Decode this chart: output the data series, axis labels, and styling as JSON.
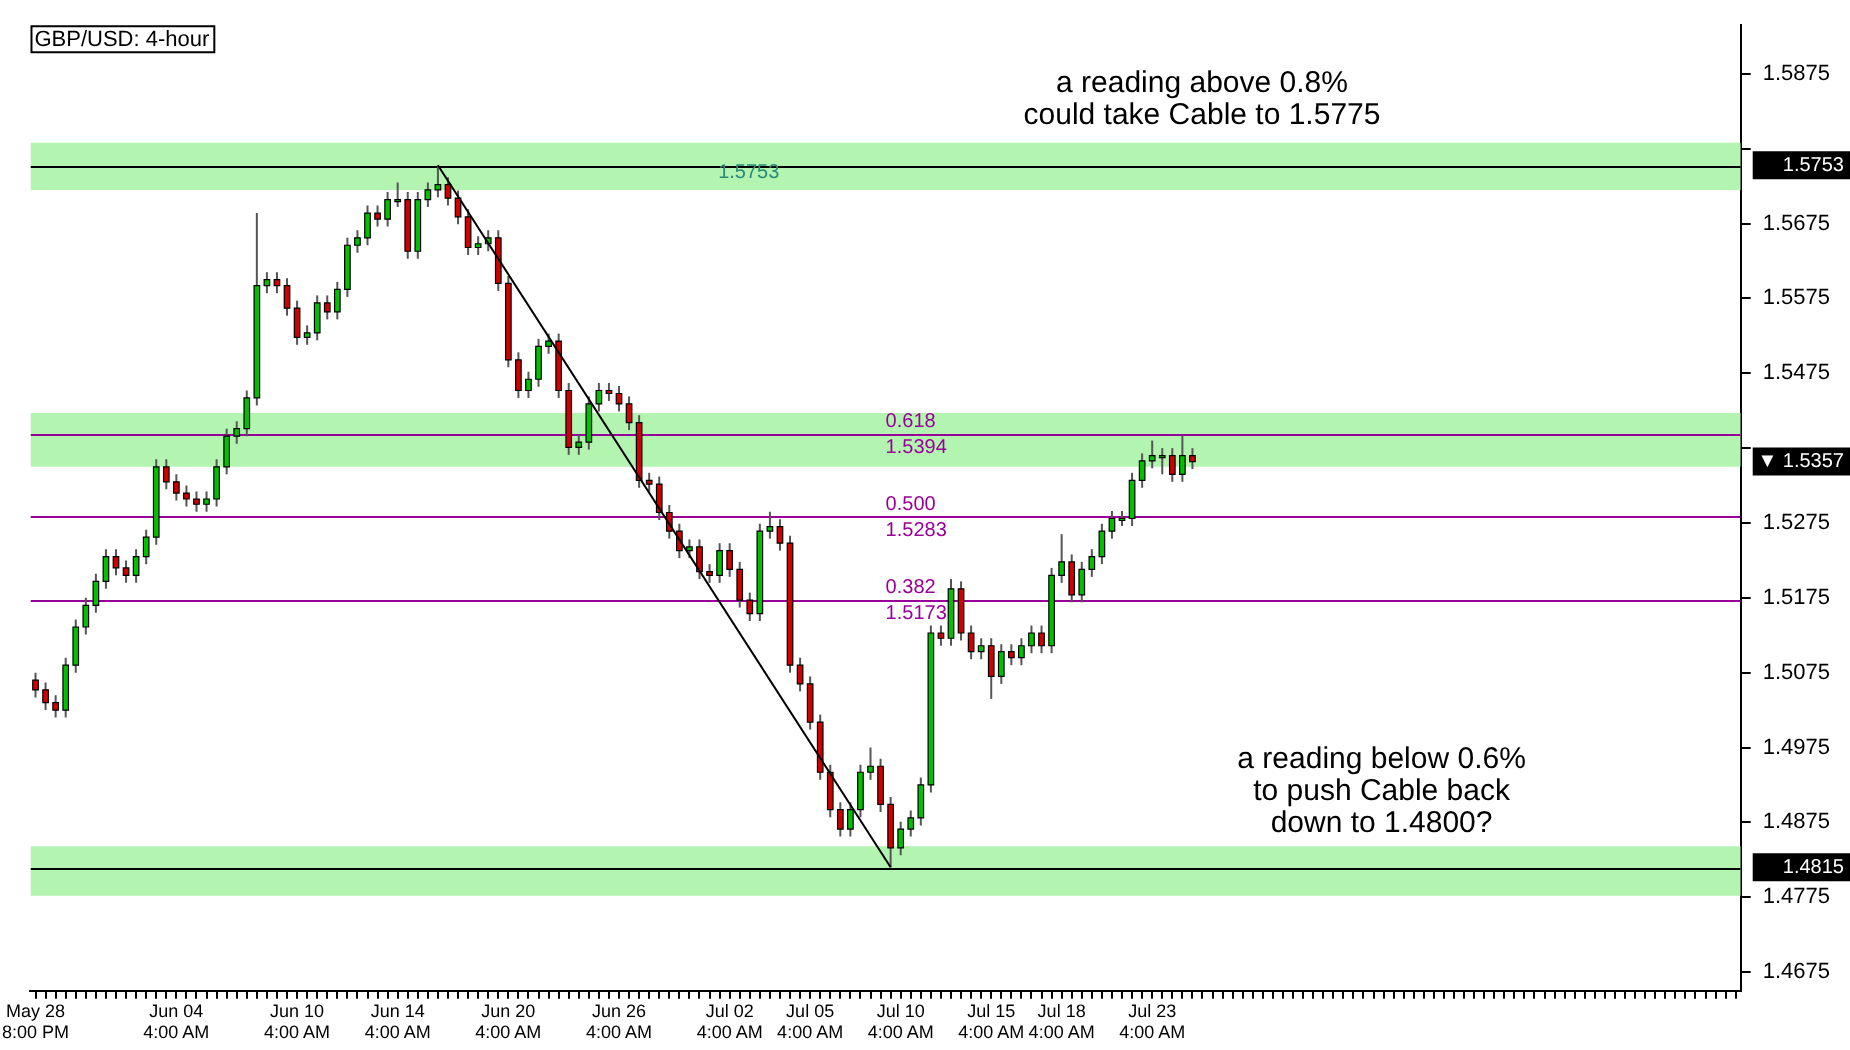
{
  "chart_data": {
    "type": "candlestick",
    "title": "GBP/USD: 4-hour",
    "categories": [
      "May 28 8:00 PM",
      null,
      null,
      null,
      null,
      null,
      null,
      null,
      null,
      null,
      null,
      null,
      null,
      null,
      "Jun 04 4:00 AM",
      null,
      null,
      null,
      null,
      null,
      null,
      null,
      null,
      null,
      null,
      null,
      "Jun 10 4:00 AM",
      null,
      null,
      null,
      null,
      null,
      null,
      null,
      null,
      null,
      "Jun 14 4:00 AM",
      null,
      null,
      null,
      null,
      null,
      null,
      null,
      null,
      null,
      null,
      "Jun 20 4:00 AM",
      null,
      null,
      null,
      null,
      null,
      null,
      null,
      null,
      null,
      null,
      "Jun 26 4:00 AM",
      null,
      null,
      null,
      null,
      null,
      null,
      null,
      null,
      null,
      null,
      "Jul 02 4:00 AM",
      null,
      null,
      null,
      null,
      null,
      null,
      null,
      "Jul 05 4:00 AM",
      null,
      null,
      null,
      null,
      null,
      null,
      null,
      null,
      "Jul 10 4:00 AM",
      null,
      null,
      null,
      null,
      null,
      null,
      null,
      null,
      "Jul 15 4:00 AM",
      null,
      null,
      null,
      null,
      null,
      null,
      "Jul 18 4:00 AM",
      null,
      null,
      null,
      null,
      null,
      null,
      null,
      null,
      "Jul 23 4:00 AM",
      null,
      null,
      null,
      null,
      null,
      null,
      null,
      null,
      null,
      null,
      null,
      null,
      null,
      null,
      null,
      null,
      null,
      null,
      null,
      null,
      null,
      null,
      null,
      null,
      null,
      null,
      null,
      null,
      null,
      null,
      null,
      null,
      null,
      null,
      null,
      null,
      null,
      null,
      null,
      null,
      null,
      null,
      null,
      null,
      null,
      null,
      null,
      null,
      null,
      null,
      null,
      null,
      null,
      null,
      null,
      null,
      null,
      null
    ],
    "ohlc": [
      [
        1.5065,
        1.5075,
        1.5042,
        1.5052
      ],
      [
        1.5052,
        1.5062,
        1.5025,
        1.5035
      ],
      [
        1.5035,
        1.5045,
        1.5015,
        1.5025
      ],
      [
        1.5025,
        1.5095,
        1.5015,
        1.5085
      ],
      [
        1.5085,
        1.5146,
        1.5075,
        1.5136
      ],
      [
        1.5136,
        1.5175,
        1.5126,
        1.5165
      ],
      [
        1.5165,
        1.5207,
        1.5155,
        1.5197
      ],
      [
        1.5197,
        1.524,
        1.5187,
        1.523
      ],
      [
        1.523,
        1.524,
        1.5205,
        1.5215
      ],
      [
        1.5215,
        1.5225,
        1.5195,
        1.5205
      ],
      [
        1.5205,
        1.524,
        1.5195,
        1.523
      ],
      [
        1.523,
        1.5266,
        1.522,
        1.5256
      ],
      [
        1.5256,
        1.536,
        1.5246,
        1.535
      ],
      [
        1.535,
        1.536,
        1.532,
        1.533
      ],
      [
        1.533,
        1.534,
        1.5305,
        1.5315
      ],
      [
        1.5315,
        1.5325,
        1.5297,
        1.5307
      ],
      [
        1.5307,
        1.5317,
        1.529,
        1.53
      ],
      [
        1.53,
        1.5317,
        1.529,
        1.5307
      ],
      [
        1.5307,
        1.536,
        1.5297,
        1.535
      ],
      [
        1.535,
        1.5401,
        1.534,
        1.5391
      ],
      [
        1.5391,
        1.5411,
        1.5381,
        1.5401
      ],
      [
        1.5401,
        1.5452,
        1.5391,
        1.5442
      ],
      [
        1.5442,
        1.5689,
        1.5432,
        1.5592
      ],
      [
        1.5592,
        1.561,
        1.5582,
        1.56
      ],
      [
        1.56,
        1.561,
        1.5582,
        1.5592
      ],
      [
        1.5592,
        1.5602,
        1.5552,
        1.5562
      ],
      [
        1.5562,
        1.5572,
        1.5513,
        1.5523
      ],
      [
        1.5523,
        1.5539,
        1.5513,
        1.5529
      ],
      [
        1.5529,
        1.5579,
        1.5519,
        1.5569
      ],
      [
        1.5569,
        1.5579,
        1.5547,
        1.5557
      ],
      [
        1.5557,
        1.5597,
        1.5547,
        1.5587
      ],
      [
        1.5587,
        1.5656,
        1.5577,
        1.5646
      ],
      [
        1.5646,
        1.5666,
        1.5636,
        1.5656
      ],
      [
        1.5656,
        1.5699,
        1.5646,
        1.5689
      ],
      [
        1.5689,
        1.5699,
        1.5671,
        1.5681
      ],
      [
        1.5681,
        1.5717,
        1.5671,
        1.5707
      ],
      [
        1.5707,
        1.573,
        1.5697,
        1.5707
      ],
      [
        1.5707,
        1.5717,
        1.5628,
        1.5638
      ],
      [
        1.5638,
        1.5717,
        1.5628,
        1.5707
      ],
      [
        1.5707,
        1.573,
        1.5697,
        1.572
      ],
      [
        1.572,
        1.5753,
        1.571,
        1.5727
      ],
      [
        1.5727,
        1.5737,
        1.5699,
        1.5709
      ],
      [
        1.5709,
        1.5719,
        1.5674,
        1.5684
      ],
      [
        1.5684,
        1.5694,
        1.5633,
        1.5643
      ],
      [
        1.5643,
        1.5658,
        1.5633,
        1.5648
      ],
      [
        1.5648,
        1.5666,
        1.5638,
        1.5656
      ],
      [
        1.5656,
        1.5666,
        1.5585,
        1.5595
      ],
      [
        1.5595,
        1.5605,
        1.5483,
        1.5493
      ],
      [
        1.5493,
        1.5503,
        1.5442,
        1.5452
      ],
      [
        1.5452,
        1.5477,
        1.5442,
        1.5467
      ],
      [
        1.5467,
        1.5521,
        1.5457,
        1.5511
      ],
      [
        1.5511,
        1.5528,
        1.5501,
        1.5518
      ],
      [
        1.5518,
        1.5528,
        1.5442,
        1.5452
      ],
      [
        1.5452,
        1.5462,
        1.5366,
        1.5376
      ],
      [
        1.5376,
        1.5393,
        1.5366,
        1.5383
      ],
      [
        1.5383,
        1.5444,
        1.5373,
        1.5434
      ],
      [
        1.5434,
        1.5462,
        1.5424,
        1.5452
      ],
      [
        1.5452,
        1.5462,
        1.5438,
        1.5448
      ],
      [
        1.5448,
        1.5458,
        1.5424,
        1.5434
      ],
      [
        1.5434,
        1.5444,
        1.5399,
        1.5409
      ],
      [
        1.5409,
        1.5419,
        1.5322,
        1.5332
      ],
      [
        1.5332,
        1.5342,
        1.5317,
        1.5327
      ],
      [
        1.5327,
        1.5337,
        1.5279,
        1.5289
      ],
      [
        1.5289,
        1.5299,
        1.5254,
        1.5264
      ],
      [
        1.5264,
        1.5274,
        1.5228,
        1.5238
      ],
      [
        1.5238,
        1.5253,
        1.5228,
        1.5243
      ],
      [
        1.5243,
        1.5253,
        1.52,
        1.521
      ],
      [
        1.521,
        1.522,
        1.5195,
        1.5205
      ],
      [
        1.5205,
        1.5248,
        1.5195,
        1.5238
      ],
      [
        1.5238,
        1.5248,
        1.5203,
        1.5213
      ],
      [
        1.5213,
        1.5223,
        1.5162,
        1.5172
      ],
      [
        1.5172,
        1.5182,
        1.5144,
        1.5154
      ],
      [
        1.5154,
        1.5274,
        1.5144,
        1.5264
      ],
      [
        1.5264,
        1.529,
        1.5254,
        1.527
      ],
      [
        1.527,
        1.528,
        1.5238,
        1.5248
      ],
      [
        1.5248,
        1.5258,
        1.5075,
        1.5085
      ],
      [
        1.5085,
        1.5095,
        1.505,
        1.506
      ],
      [
        1.506,
        1.507,
        1.4999,
        1.5009
      ],
      [
        1.5009,
        1.5019,
        1.4932,
        1.4942
      ],
      [
        1.4942,
        1.4952,
        1.4882,
        1.4892
      ],
      [
        1.4892,
        1.4902,
        1.4856,
        1.4866
      ],
      [
        1.4866,
        1.4902,
        1.4856,
        1.4892
      ],
      [
        1.4892,
        1.4952,
        1.4882,
        1.4942
      ],
      [
        1.4942,
        1.4975,
        1.4932,
        1.495
      ],
      [
        1.495,
        1.496,
        1.4889,
        1.4899
      ],
      [
        1.4899,
        1.4909,
        1.4815,
        1.4841
      ],
      [
        1.4841,
        1.4876,
        1.4831,
        1.4866
      ],
      [
        1.4866,
        1.4891,
        1.4856,
        1.4881
      ],
      [
        1.4881,
        1.4935,
        1.4871,
        1.4925
      ],
      [
        1.4925,
        1.5138,
        1.4915,
        1.5128
      ],
      [
        1.5128,
        1.5138,
        1.5111,
        1.5121
      ],
      [
        1.5121,
        1.52,
        1.5111,
        1.5187
      ],
      [
        1.5187,
        1.5197,
        1.5118,
        1.5128
      ],
      [
        1.5128,
        1.5138,
        1.5093,
        1.5103
      ],
      [
        1.5103,
        1.5121,
        1.5093,
        1.5111
      ],
      [
        1.5111,
        1.5121,
        1.504,
        1.507
      ],
      [
        1.507,
        1.5113,
        1.506,
        1.5103
      ],
      [
        1.5103,
        1.5113,
        1.5085,
        1.5095
      ],
      [
        1.5095,
        1.5121,
        1.5085,
        1.5111
      ],
      [
        1.5111,
        1.5138,
        1.5101,
        1.5128
      ],
      [
        1.5128,
        1.5138,
        1.5101,
        1.5111
      ],
      [
        1.5111,
        1.5215,
        1.5101,
        1.5205
      ],
      [
        1.5205,
        1.526,
        1.5195,
        1.5223
      ],
      [
        1.5223,
        1.5233,
        1.5169,
        1.5179
      ],
      [
        1.5179,
        1.5223,
        1.5169,
        1.5213
      ],
      [
        1.5213,
        1.524,
        1.5203,
        1.523
      ],
      [
        1.523,
        1.5274,
        1.522,
        1.5264
      ],
      [
        1.5264,
        1.5291,
        1.5254,
        1.5281
      ],
      [
        1.5281,
        1.5291,
        1.5271,
        1.5281
      ],
      [
        1.5281,
        1.5342,
        1.5271,
        1.5332
      ],
      [
        1.5332,
        1.5368,
        1.5322,
        1.5358
      ],
      [
        1.5358,
        1.5385,
        1.5348,
        1.5365
      ],
      [
        1.5365,
        1.5375,
        1.534,
        1.5365
      ],
      [
        1.5365,
        1.5375,
        1.533,
        1.534
      ],
      [
        1.534,
        1.5392,
        1.533,
        1.5365
      ],
      [
        1.5365,
        1.5375,
        1.5347,
        1.5357
      ],
      null,
      null,
      null,
      null,
      null,
      null,
      null,
      null,
      null,
      null,
      null,
      null,
      null,
      null,
      null,
      null,
      null,
      null,
      null,
      null,
      null,
      null,
      null,
      null,
      null,
      null,
      null,
      null,
      null,
      null,
      null,
      null,
      null,
      null,
      null,
      null,
      null,
      null,
      null,
      null,
      null,
      null,
      null,
      null,
      null,
      null,
      null,
      null,
      null,
      null,
      null,
      null,
      null,
      null
    ],
    "series": [
      {
        "type": "line",
        "color": "#000000",
        "values": [
          null,
          null,
          null,
          null,
          null,
          null,
          null,
          null,
          null,
          null,
          null,
          null,
          null,
          null,
          null,
          null,
          null,
          null,
          null,
          null,
          null,
          null,
          null,
          null,
          null,
          null,
          null,
          null,
          null,
          null,
          null,
          null,
          null,
          null,
          null,
          null,
          null,
          null,
          null,
          null,
          1.5753,
          null,
          null,
          null,
          null,
          null,
          null,
          null,
          null,
          null,
          null,
          null,
          null,
          null,
          null,
          null,
          null,
          null,
          null,
          null,
          null,
          null,
          null,
          null,
          null,
          null,
          null,
          null,
          null,
          null,
          null,
          null,
          null,
          null,
          null,
          null,
          null,
          null,
          null,
          null,
          null,
          null,
          null,
          null,
          null,
          1.4815,
          null,
          null,
          null,
          null,
          null,
          null,
          null,
          null,
          null,
          null,
          null,
          null,
          null,
          null,
          null,
          null,
          null,
          null,
          null,
          null,
          null,
          null,
          null,
          null,
          null,
          null,
          null,
          null,
          null,
          null,
          null,
          null,
          null,
          null,
          null,
          null,
          null,
          null,
          null,
          null,
          null,
          null,
          null,
          null,
          null,
          null,
          null,
          null,
          null,
          null,
          null,
          null,
          null,
          null,
          null,
          null,
          null,
          null,
          null,
          null,
          null,
          null,
          null,
          null,
          null,
          null,
          null,
          null,
          null,
          null,
          null,
          null,
          null,
          null,
          null,
          null,
          null,
          null,
          null,
          null,
          null,
          null,
          null,
          null
        ]
      }
    ],
    "ylim": [
      1.465,
      1.594
    ],
    "yticks": [
      1.4675,
      1.4775,
      1.4875,
      1.4975,
      1.5075,
      1.5175,
      1.5275,
      {
        "value": 1.5375,
        "label": null
      },
      1.5475,
      1.5575,
      1.5675,
      {
        "value": 1.5775,
        "label": null
      },
      1.5875
    ],
    "ref_lines": [
      {
        "axis": "y",
        "value": 1.5753,
        "label": "1.5753",
        "color": "#000000"
      },
      {
        "axis": "y",
        "value": 1.4815,
        "label": "1.4815",
        "color": "#000000"
      },
      {
        "axis": "y",
        "value": 1.5394,
        "label": "1.5394",
        "color": "#990099"
      },
      {
        "axis": "y",
        "value": 1.5283,
        "label": "1.5283",
        "color": "#990099"
      },
      {
        "axis": "y",
        "value": 1.5173,
        "label": "1.5173",
        "color": "#990099"
      }
    ],
    "bands": [
      {
        "axis": "y",
        "from": 1.572,
        "to": 1.5783,
        "label": "1.5753",
        "color": "#b3f5b0"
      },
      {
        "axis": "y",
        "from": 1.535,
        "to": 1.5422,
        "color": "#b3f5b0"
      },
      {
        "axis": "y",
        "from": 1.4777,
        "to": 1.4843,
        "color": "#b3f5b0"
      }
    ],
    "annotations": [
      "a reading above 0.8%\ncould take Cable to 1.5775",
      "a reading below 0.6%\nto push Cable back\ndown to 1.4800?",
      "▼ 1.5357",
      {
        "text": "0.618",
        "y": 1.5394
      },
      {
        "text": "0.500",
        "y": 1.5283
      },
      {
        "text": "0.382",
        "y": 1.5173
      }
    ],
    "grid": false,
    "legend": false
  }
}
